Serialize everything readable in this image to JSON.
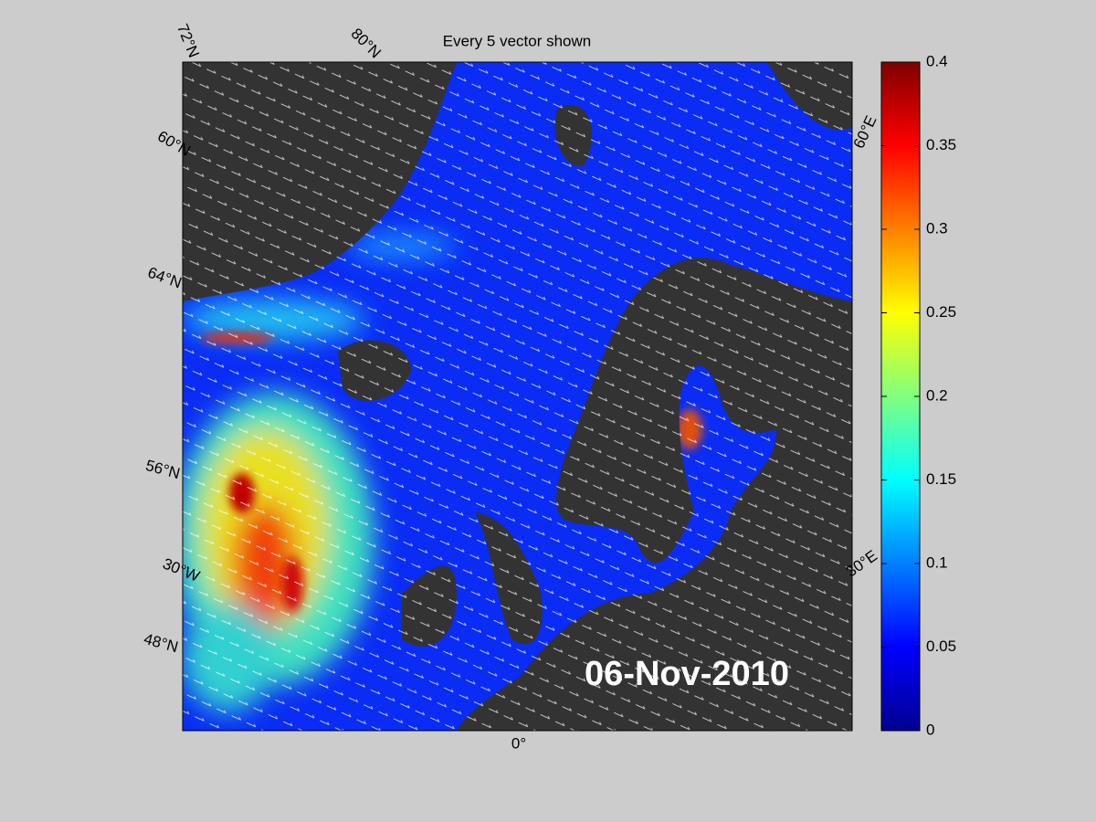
{
  "title": "Every 5 vector shown",
  "date": "06-Nov-2010",
  "map_labels": [
    "72°N",
    "80°N",
    "60°N",
    "64°N",
    "56°N",
    "30°W",
    "48°N",
    "0°",
    "30°E",
    "60°E"
  ],
  "colorbar": {
    "lim": [
      0,
      0.4
    ],
    "ticks": [
      0,
      0.05,
      0.1,
      0.15,
      0.2,
      0.25,
      0.3,
      0.35,
      0.4
    ]
  }
}
